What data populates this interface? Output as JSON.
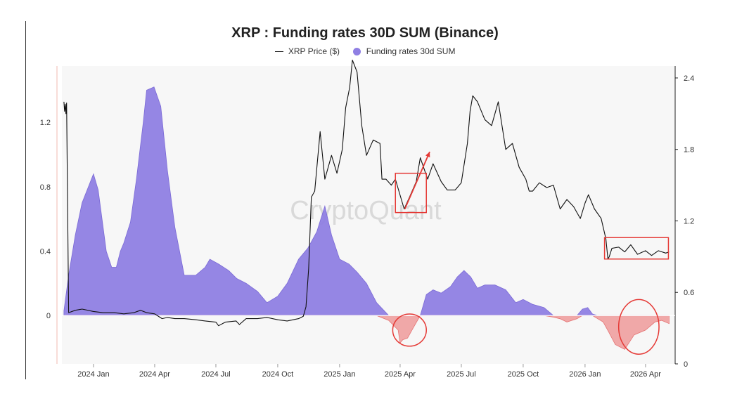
{
  "chart_data": {
    "type": "area",
    "title": "XRP : Funding rates 30D SUM (Binance)",
    "watermark": "CryptoQuant",
    "legend_position": "top-center",
    "colors": {
      "price": "#111111",
      "funding_positive": "#8f7fe3",
      "funding_negative": "#ef9a9a",
      "annotation": "#e53935",
      "plot_bg": "#f7f7f7"
    },
    "x_tick_labels": [
      "2024 Jan",
      "2024 Apr",
      "2024 Jul",
      "2024 Oct",
      "2025 Jan",
      "2025 Apr",
      "2025 Jul",
      "2025 Oct",
      "2026 Jan",
      "2026 Apr"
    ],
    "xlim": [
      "2023-11-15",
      "2026-05-15"
    ],
    "y_left": {
      "ticks": [
        "0",
        "0.4",
        "0.8",
        "1.2"
      ],
      "ylim": [
        -0.3,
        1.55
      ]
    },
    "y_right": {
      "ticks": [
        "0",
        "0.6",
        "1.2",
        "1.8",
        "2.4"
      ],
      "ylim": [
        0,
        2.5
      ]
    },
    "series": [
      {
        "name": "XRP Price ($)",
        "axis": "right",
        "kind": "line",
        "x": [
          "2023-11-18",
          "2023-11-19",
          "2023-11-20",
          "2023-11-21",
          "2023-11-22",
          "2023-11-25",
          "2023-12-05",
          "2023-12-15",
          "2024-01-01",
          "2024-01-15",
          "2024-02-01",
          "2024-02-15",
          "2024-03-01",
          "2024-03-11",
          "2024-03-20",
          "2024-04-01",
          "2024-04-12",
          "2024-04-20",
          "2024-05-01",
          "2024-05-15",
          "2024-06-01",
          "2024-06-15",
          "2024-07-01",
          "2024-07-05",
          "2024-07-15",
          "2024-07-31",
          "2024-08-05",
          "2024-08-15",
          "2024-09-01",
          "2024-09-15",
          "2024-10-01",
          "2024-10-15",
          "2024-11-01",
          "2024-11-08",
          "2024-11-12",
          "2024-11-16",
          "2024-11-20",
          "2024-11-25",
          "2024-12-03",
          "2024-12-10",
          "2024-12-20",
          "2024-12-28",
          "2025-01-05",
          "2025-01-10",
          "2025-01-16",
          "2025-01-20",
          "2025-01-27",
          "2025-02-03",
          "2025-02-10",
          "2025-02-20",
          "2025-03-02",
          "2025-03-05",
          "2025-03-11",
          "2025-03-19",
          "2025-03-25",
          "2025-04-07",
          "2025-04-15",
          "2025-04-25",
          "2025-05-01",
          "2025-05-12",
          "2025-05-20",
          "2025-06-01",
          "2025-06-10",
          "2025-06-22",
          "2025-07-01",
          "2025-07-10",
          "2025-07-14",
          "2025-07-18",
          "2025-07-25",
          "2025-08-05",
          "2025-08-15",
          "2025-08-25",
          "2025-09-05",
          "2025-09-15",
          "2025-09-25",
          "2025-10-05",
          "2025-10-10",
          "2025-10-15",
          "2025-10-25",
          "2025-11-05",
          "2025-11-15",
          "2025-11-25",
          "2025-12-05",
          "2025-12-15",
          "2025-12-25",
          "2026-01-01",
          "2026-01-06",
          "2026-01-15",
          "2026-01-25",
          "2026-02-01",
          "2026-02-04",
          "2026-02-06",
          "2026-02-10",
          "2026-02-20",
          "2026-03-01",
          "2026-03-10",
          "2026-03-20",
          "2026-04-01",
          "2026-04-10",
          "2026-04-20",
          "2026-05-01",
          "2026-05-06"
        ],
        "y": [
          2.2,
          2.12,
          2.18,
          2.1,
          2.19,
          0.43,
          0.45,
          0.46,
          0.44,
          0.43,
          0.43,
          0.42,
          0.43,
          0.45,
          0.43,
          0.42,
          0.38,
          0.39,
          0.38,
          0.38,
          0.37,
          0.36,
          0.35,
          0.32,
          0.35,
          0.36,
          0.33,
          0.38,
          0.38,
          0.39,
          0.37,
          0.36,
          0.38,
          0.4,
          0.48,
          0.8,
          1.4,
          1.45,
          1.95,
          1.55,
          1.75,
          1.6,
          1.8,
          2.15,
          2.32,
          2.55,
          2.45,
          2.0,
          1.75,
          1.88,
          1.85,
          1.55,
          1.55,
          1.5,
          1.55,
          1.3,
          1.4,
          1.53,
          1.73,
          1.55,
          1.68,
          1.53,
          1.46,
          1.46,
          1.52,
          1.85,
          2.12,
          2.25,
          2.2,
          2.05,
          2.0,
          2.2,
          1.8,
          1.85,
          1.65,
          1.55,
          1.45,
          1.45,
          1.52,
          1.48,
          1.5,
          1.3,
          1.38,
          1.32,
          1.22,
          1.35,
          1.42,
          1.3,
          1.22,
          1.05,
          0.88,
          0.9,
          0.97,
          0.98,
          0.94,
          1.0,
          0.92,
          0.95,
          0.91,
          0.95,
          0.93,
          0.94
        ]
      },
      {
        "name": "Funding rates 30d SUM",
        "axis": "left",
        "kind": "area",
        "x": [
          "2023-11-18",
          "2023-11-25",
          "2023-12-05",
          "2023-12-15",
          "2024-01-01",
          "2024-01-08",
          "2024-01-20",
          "2024-01-28",
          "2024-02-04",
          "2024-02-10",
          "2024-02-15",
          "2024-02-25",
          "2024-03-05",
          "2024-03-15",
          "2024-03-20",
          "2024-03-31",
          "2024-04-10",
          "2024-04-20",
          "2024-05-01",
          "2024-05-15",
          "2024-06-01",
          "2024-06-15",
          "2024-06-22",
          "2024-07-05",
          "2024-07-20",
          "2024-08-01",
          "2024-08-15",
          "2024-09-01",
          "2024-09-15",
          "2024-10-01",
          "2024-10-15",
          "2024-11-01",
          "2024-11-15",
          "2024-11-28",
          "2024-12-10",
          "2024-12-20",
          "2025-01-01",
          "2025-01-15",
          "2025-01-27",
          "2025-02-10",
          "2025-02-25",
          "2025-03-15",
          "2025-03-22",
          "2025-03-29",
          "2025-04-01",
          "2025-04-05",
          "2025-04-12",
          "2025-04-20",
          "2025-05-01",
          "2025-05-10",
          "2025-05-20",
          "2025-06-01",
          "2025-06-15",
          "2025-06-25",
          "2025-07-05",
          "2025-07-15",
          "2025-07-25",
          "2025-08-05",
          "2025-08-20",
          "2025-09-05",
          "2025-09-20",
          "2025-10-01",
          "2025-10-15",
          "2025-11-01",
          "2025-11-15",
          "2025-11-25",
          "2025-12-05",
          "2025-12-20",
          "2025-12-28",
          "2026-01-05",
          "2026-01-12",
          "2026-01-20",
          "2026-01-28",
          "2026-02-05",
          "2026-02-15",
          "2026-03-01",
          "2026-03-15",
          "2026-04-01",
          "2026-04-15",
          "2026-04-25",
          "2026-05-06"
        ],
        "y": [
          0.03,
          0.25,
          0.5,
          0.7,
          0.88,
          0.78,
          0.4,
          0.3,
          0.3,
          0.4,
          0.45,
          0.58,
          0.85,
          1.2,
          1.4,
          1.42,
          1.3,
          0.9,
          0.55,
          0.25,
          0.25,
          0.3,
          0.35,
          0.32,
          0.28,
          0.23,
          0.2,
          0.15,
          0.08,
          0.12,
          0.2,
          0.35,
          0.42,
          0.52,
          0.68,
          0.5,
          0.35,
          0.32,
          0.27,
          0.2,
          0.08,
          -0.03,
          -0.06,
          -0.09,
          -0.17,
          -0.15,
          -0.14,
          -0.08,
          0.0,
          0.13,
          0.16,
          0.14,
          0.18,
          0.24,
          0.28,
          0.24,
          0.17,
          0.19,
          0.19,
          0.16,
          0.08,
          0.1,
          0.07,
          0.05,
          -0.01,
          -0.02,
          -0.04,
          -0.02,
          0.04,
          0.05,
          0.01,
          -0.02,
          -0.04,
          -0.1,
          -0.18,
          -0.21,
          -0.12,
          -0.09,
          -0.04,
          -0.03,
          -0.05
        ]
      }
    ],
    "annotations": {
      "rectangles": [
        {
          "x0": "2025-03-25",
          "x1": "2025-05-10",
          "y0": 1.27,
          "y1": 1.6,
          "axis": "right"
        },
        {
          "x0": "2026-01-30",
          "x1": "2026-05-05",
          "y0": 0.88,
          "y1": 1.06,
          "axis": "right"
        }
      ],
      "arrow": {
        "from": [
          "2025-04-08",
          1.3
        ],
        "to": [
          "2025-05-15",
          1.78
        ],
        "axis": "right"
      },
      "ellipses": [
        {
          "center": [
            "2025-04-15",
            -0.09
          ],
          "rx_days": 25,
          "ry": 0.1,
          "axis": "left"
        },
        {
          "center": [
            "2026-03-22",
            -0.07
          ],
          "rx_days": 30,
          "ry": 0.17,
          "axis": "left"
        }
      ]
    }
  }
}
